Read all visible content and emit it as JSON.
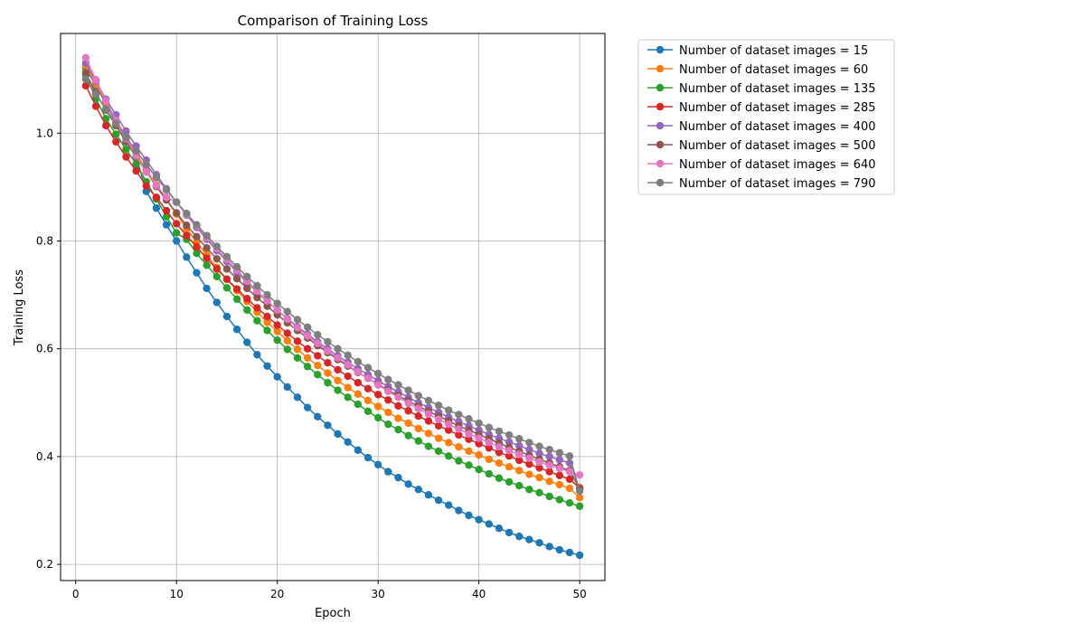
{
  "chart_data": {
    "type": "line",
    "title": "Comparison of Training Loss",
    "xlabel": "Epoch",
    "ylabel": "Training Loss",
    "xlim": [
      -1.5,
      52.5
    ],
    "ylim": [
      0.17,
      1.185
    ],
    "xticks": [
      0,
      10,
      20,
      30,
      40,
      50
    ],
    "yticks": [
      0.2,
      0.4,
      0.6,
      0.8,
      1.0
    ],
    "ytick_labels": [
      "0.2",
      "0.4",
      "0.6",
      "0.8",
      "1.0"
    ],
    "grid": true,
    "legend_position": "outside-right-top",
    "marker": "circle",
    "x_start": 1,
    "x_end": 50,
    "series": [
      {
        "name": "Number of dataset images = 15",
        "color": "#1f77b4",
        "values": [
          1.121,
          1.088,
          1.055,
          1.021,
          0.989,
          0.957,
          0.892,
          0.861,
          0.83,
          0.8,
          0.77,
          0.741,
          0.712,
          0.686,
          0.66,
          0.636,
          0.612,
          0.589,
          0.568,
          0.548,
          0.529,
          0.51,
          0.491,
          0.474,
          0.458,
          0.442,
          0.427,
          0.412,
          0.398,
          0.385,
          0.372,
          0.361,
          0.349,
          0.339,
          0.329,
          0.319,
          0.31,
          0.3,
          0.291,
          0.283,
          0.275,
          0.267,
          0.259,
          0.252,
          0.246,
          0.24,
          0.233,
          0.227,
          0.222,
          0.217
        ]
      },
      {
        "name": "Number of dataset images = 60",
        "color": "#ff7f0e",
        "values": [
          1.125,
          1.091,
          1.058,
          1.025,
          0.993,
          0.962,
          0.932,
          0.904,
          0.877,
          0.85,
          0.823,
          0.798,
          0.774,
          0.751,
          0.729,
          0.708,
          0.688,
          0.668,
          0.649,
          0.632,
          0.615,
          0.599,
          0.583,
          0.569,
          0.555,
          0.541,
          0.528,
          0.516,
          0.504,
          0.493,
          0.482,
          0.471,
          0.462,
          0.452,
          0.443,
          0.434,
          0.426,
          0.418,
          0.41,
          0.403,
          0.395,
          0.388,
          0.381,
          0.374,
          0.367,
          0.361,
          0.354,
          0.348,
          0.341,
          0.324
        ]
      },
      {
        "name": "Number of dataset images = 135",
        "color": "#2ca02c",
        "values": [
          1.108,
          1.064,
          1.027,
          0.998,
          0.97,
          0.943,
          0.91,
          0.878,
          0.845,
          0.815,
          0.803,
          0.777,
          0.755,
          0.734,
          0.713,
          0.692,
          0.672,
          0.652,
          0.634,
          0.616,
          0.599,
          0.583,
          0.567,
          0.552,
          0.537,
          0.523,
          0.51,
          0.497,
          0.484,
          0.472,
          0.46,
          0.45,
          0.439,
          0.429,
          0.419,
          0.41,
          0.401,
          0.392,
          0.384,
          0.376,
          0.368,
          0.36,
          0.353,
          0.346,
          0.339,
          0.333,
          0.326,
          0.32,
          0.314,
          0.308
        ]
      },
      {
        "name": "Number of dataset images = 285",
        "color": "#d62728",
        "values": [
          1.088,
          1.05,
          1.014,
          0.984,
          0.956,
          0.93,
          0.902,
          0.881,
          0.856,
          0.832,
          0.81,
          0.789,
          0.768,
          0.748,
          0.729,
          0.711,
          0.693,
          0.676,
          0.66,
          0.644,
          0.629,
          0.614,
          0.6,
          0.587,
          0.574,
          0.561,
          0.549,
          0.537,
          0.526,
          0.515,
          0.505,
          0.494,
          0.485,
          0.475,
          0.466,
          0.457,
          0.449,
          0.44,
          0.432,
          0.424,
          0.416,
          0.408,
          0.401,
          0.393,
          0.386,
          0.379,
          0.372,
          0.365,
          0.358,
          0.342
        ]
      },
      {
        "name": "Number of dataset images = 400",
        "color": "#9467bd",
        "values": [
          1.13,
          1.097,
          1.063,
          1.034,
          1.004,
          0.976,
          0.95,
          0.923,
          0.897,
          0.872,
          0.848,
          0.825,
          0.803,
          0.782,
          0.762,
          0.742,
          0.723,
          0.705,
          0.688,
          0.672,
          0.656,
          0.641,
          0.627,
          0.613,
          0.6,
          0.587,
          0.575,
          0.563,
          0.552,
          0.541,
          0.53,
          0.52,
          0.51,
          0.5,
          0.491,
          0.482,
          0.473,
          0.465,
          0.457,
          0.449,
          0.441,
          0.434,
          0.427,
          0.42,
          0.413,
          0.406,
          0.4,
          0.394,
          0.388,
          0.34
        ]
      },
      {
        "name": "Number of dataset images = 500",
        "color": "#8c564b",
        "values": [
          1.112,
          1.074,
          1.043,
          1.014,
          0.984,
          0.956,
          0.928,
          0.901,
          0.876,
          0.852,
          0.829,
          0.808,
          0.787,
          0.767,
          0.748,
          0.73,
          0.712,
          0.695,
          0.679,
          0.663,
          0.648,
          0.634,
          0.62,
          0.606,
          0.593,
          0.58,
          0.568,
          0.556,
          0.545,
          0.534,
          0.523,
          0.513,
          0.503,
          0.493,
          0.484,
          0.475,
          0.466,
          0.457,
          0.449,
          0.441,
          0.433,
          0.425,
          0.417,
          0.41,
          0.402,
          0.395,
          0.388,
          0.381,
          0.374,
          0.34
        ]
      },
      {
        "name": "Number of dataset images = 640",
        "color": "#e377c2",
        "values": [
          1.14,
          1.099,
          1.06,
          1.024,
          0.99,
          0.958,
          0.928,
          0.903,
          0.881,
          0.872,
          0.849,
          0.828,
          0.806,
          0.786,
          0.766,
          0.746,
          0.726,
          0.707,
          0.689,
          0.672,
          0.655,
          0.639,
          0.624,
          0.61,
          0.596,
          0.583,
          0.57,
          0.557,
          0.545,
          0.533,
          0.521,
          0.51,
          0.499,
          0.489,
          0.479,
          0.469,
          0.46,
          0.451,
          0.442,
          0.434,
          0.426,
          0.418,
          0.411,
          0.404,
          0.397,
          0.39,
          0.384,
          0.378,
          0.372,
          0.366
        ]
      },
      {
        "name": "Number of dataset images = 790",
        "color": "#7f7f7f",
        "values": [
          1.1,
          1.072,
          1.045,
          1.018,
          0.992,
          0.967,
          0.942,
          0.918,
          0.895,
          0.872,
          0.851,
          0.83,
          0.81,
          0.79,
          0.771,
          0.752,
          0.734,
          0.717,
          0.7,
          0.684,
          0.669,
          0.654,
          0.64,
          0.626,
          0.613,
          0.6,
          0.588,
          0.576,
          0.565,
          0.554,
          0.543,
          0.533,
          0.523,
          0.513,
          0.504,
          0.495,
          0.486,
          0.478,
          0.47,
          0.462,
          0.454,
          0.447,
          0.44,
          0.433,
          0.426,
          0.419,
          0.413,
          0.407,
          0.401,
          0.336
        ]
      }
    ]
  }
}
